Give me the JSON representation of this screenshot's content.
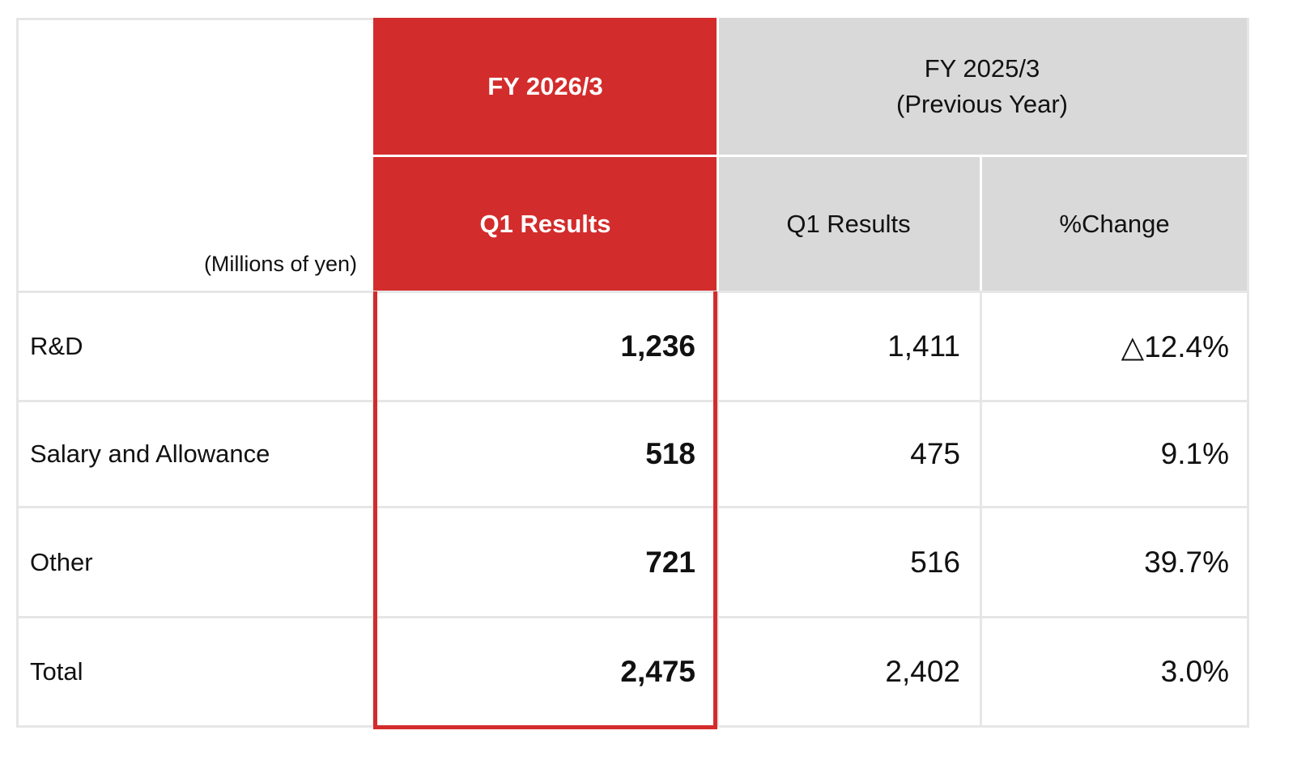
{
  "header": {
    "unit_label": "(Millions of yen)",
    "current_fy": "FY 2026/3",
    "previous_fy_line1": "FY 2025/3",
    "previous_fy_line2": "(Previous Year)",
    "current_q1": "Q1 Results",
    "previous_q1": "Q1 Results",
    "change": "%Change"
  },
  "rows": [
    {
      "label": "R&D",
      "current": "1,236",
      "previous": "1,411",
      "change": "△12.4%"
    },
    {
      "label": "Salary and Allowance",
      "current": "518",
      "previous": "475",
      "change": "9.1%"
    },
    {
      "label": "Other",
      "current": "721",
      "previous": "516",
      "change": "39.7%"
    },
    {
      "label": "Total",
      "current": "2,475",
      "previous": "2,402",
      "change": "3.0%"
    }
  ],
  "colors": {
    "accent_red": "#d32c2c",
    "header_grey": "#d9d9d9",
    "grid_line": "#e6e6e6"
  }
}
